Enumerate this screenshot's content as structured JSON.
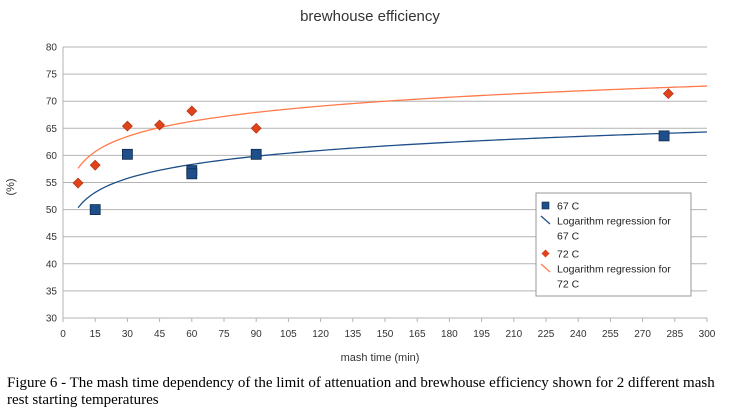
{
  "chart_data": {
    "type": "scatter",
    "title": "brewhouse efficiency",
    "xlabel": "mash time (min)",
    "ylabel": "(%)",
    "xlim": [
      0,
      300
    ],
    "ylim": [
      30,
      80
    ],
    "xticks": [
      0,
      15,
      30,
      45,
      60,
      75,
      90,
      105,
      120,
      135,
      150,
      165,
      180,
      195,
      210,
      225,
      240,
      255,
      270,
      285,
      300
    ],
    "yticks": [
      30,
      35,
      40,
      45,
      50,
      55,
      60,
      65,
      70,
      75,
      80
    ],
    "grid": true,
    "legend_position": "right",
    "series": [
      {
        "name": "67 C",
        "marker": "square",
        "color": "#1f4f8a",
        "points": [
          {
            "x": 15,
            "y": 50.0
          },
          {
            "x": 30,
            "y": 60.2
          },
          {
            "x": 60,
            "y": 57.2
          },
          {
            "x": 60,
            "y": 56.6
          },
          {
            "x": 90,
            "y": 60.2
          },
          {
            "x": 280,
            "y": 63.6
          }
        ]
      },
      {
        "name": "Logarithm regression for 67 C",
        "type": "line",
        "color": "#1f4f8a",
        "regression": {
          "form": "log",
          "a": 43.1,
          "b": 3.72
        },
        "x_range": [
          7,
          300
        ]
      },
      {
        "name": "72 C",
        "marker": "diamond",
        "color": "#e0421a",
        "points": [
          {
            "x": 7,
            "y": 54.9
          },
          {
            "x": 15,
            "y": 58.2
          },
          {
            "x": 30,
            "y": 65.4
          },
          {
            "x": 45,
            "y": 65.6
          },
          {
            "x": 60,
            "y": 68.2
          },
          {
            "x": 90,
            "y": 65.0
          },
          {
            "x": 282,
            "y": 71.4
          }
        ]
      },
      {
        "name": "Logarithm regression for 72 C",
        "type": "line",
        "color": "#ff7a4a",
        "regression": {
          "form": "log",
          "a": 49.75,
          "b": 4.04
        },
        "x_range": [
          7,
          300
        ]
      }
    ]
  },
  "caption": "Figure 6 - The mash time dependency of the limit of attenuation and brewhouse efficiency shown for 2 different mash rest starting temperatures",
  "legend": {
    "entries": [
      {
        "lines": [
          "67 C"
        ]
      },
      {
        "lines": [
          "Logarithm regression for",
          "67 C"
        ]
      },
      {
        "lines": [
          "72 C"
        ]
      },
      {
        "lines": [
          "Logarithm regression for",
          "72 C"
        ]
      }
    ]
  }
}
